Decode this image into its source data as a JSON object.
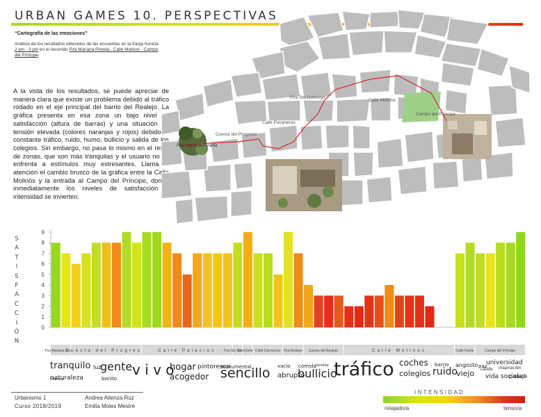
{
  "header": {
    "title": "URBAN GAMES 10. PERSPECTIVAS",
    "subtitle": "“Cartografía de las emociones”",
    "analysis_prefix": "Análisis de los resultados obtenidos de las encuentas en la franja horaria ",
    "analysis_time": "2 pm - 3 pm",
    "analysis_mid": " en el recorrido ",
    "analysis_route": "Pza Mariana Pineda - Calle Molinos - Campo del Príncipe",
    "analysis_end": "."
  },
  "body_text": "A la vista de los resultados, se puede apreciar de manera clara que existe un problema debido al tráfico rodado en el eje principal del barrio del Realejo. La gráfica presenta en esa zona un bajo nivel de satisfacción (altura de barras) y una situación de tensión elevada (colores naranjas y rojos) debido al constante tráfico, ruido, humo, bullicio y salida de los colegios. Sin embargo, no pasa lo mismo en el resto de zonas, que son más tranquilas y el usuario no se enfrenta a estímulos muy estresantes. Llama la atención el cambio brusco de la gráfica entre la Calle Molinos y la entrada al Campo del Príncipe, donde inmediatamente los niveles de satisfacción e intensidad se invierten.",
  "map": {
    "labels": [
      "Pza Sto Domingo",
      "Calle Molinos",
      "Campo del Príncipe",
      "Calle Pavaneras",
      "Cuesta del Progreso",
      "Pza Mariana Pineda"
    ],
    "colors": {
      "block": "#bdbdbd",
      "route": "#d8232a",
      "park": "#9fd08a"
    }
  },
  "chart_data": {
    "type": "bar",
    "ylabel": "SATISFACCIÓN",
    "ylim": [
      0,
      9
    ],
    "yticks": [
      0,
      1,
      2,
      3,
      4,
      5,
      6,
      7,
      8,
      9
    ],
    "values": [
      8,
      7,
      6,
      7,
      8,
      8,
      8,
      9,
      8,
      9,
      9,
      8,
      7,
      5,
      7,
      7,
      7,
      7,
      8,
      9,
      7,
      7,
      5,
      9,
      7,
      4,
      3,
      3,
      3,
      2,
      2,
      3,
      3,
      4,
      3,
      3,
      3,
      2,
      0,
      0,
      7,
      8,
      7,
      7,
      8,
      8,
      9
    ],
    "colors": [
      "#9ad81e",
      "#e8e41c",
      "#f3d01b",
      "#d6e21c",
      "#c2de1e",
      "#f2be19",
      "#f08a18",
      "#b4dc1e",
      "#d1e21e",
      "#a8da1e",
      "#a0d81e",
      "#f0b41a",
      "#f08a18",
      "#e8661a",
      "#f2a81a",
      "#f2c41b",
      "#f2c41b",
      "#f2c41b",
      "#c4de1e",
      "#f2ad19",
      "#c8e01e",
      "#b8dc1e",
      "#f2c41b",
      "#e4e41c",
      "#f08a18",
      "#f2a41a",
      "#e8401a",
      "#e4301a",
      "#e85a1a",
      "#e4301a",
      "#e02a14",
      "#e4341a",
      "#ea5018",
      "#f08a18",
      "#e8401a",
      "#e4341a",
      "#e4301a",
      "#e02a14",
      "#ffffff",
      "#ffffff",
      "#c8e01e",
      "#b4dc1e",
      "#c0de1e",
      "#eae41c",
      "#b8dc1e",
      "#a8da1e",
      "#8fd81e"
    ],
    "segments": [
      {
        "label": "Pza Mariana Pineda",
        "bars": 2
      },
      {
        "label": "Cuesta del Progreso",
        "bars": 7
      },
      {
        "label": "Calle Palacios",
        "bars": 9
      },
      {
        "label": "Pza Sto Domingo",
        "bars": 1
      },
      {
        "label": "Sto Domingo",
        "bars": 1
      },
      {
        "label": "Calle Carnicería",
        "bars": 3
      },
      {
        "label": "Pza Realejo",
        "bars": 2
      },
      {
        "label": "Cuesta del Realejo",
        "bars": 4
      },
      {
        "label": "Calle Molinos",
        "bars": 11
      },
      {
        "label": "Calle Huete",
        "bars": 2
      },
      {
        "label": "Campo del Príncipe",
        "bars": 5
      }
    ]
  },
  "words": [
    {
      "t": "tranquilo",
      "s": 13
    },
    {
      "t": "luz",
      "s": 8
    },
    {
      "t": "gente",
      "s": 16
    },
    {
      "t": "naturaleza",
      "s": 9
    },
    {
      "t": "bonito",
      "s": 7
    },
    {
      "t": "infancia",
      "s": 5
    },
    {
      "t": "v i v o",
      "s": 20
    },
    {
      "t": "hogar",
      "s": 13
    },
    {
      "t": "acogedor",
      "s": 12
    },
    {
      "t": "pintoresco",
      "s": 9
    },
    {
      "t": "monumental",
      "s": 7
    },
    {
      "t": "sencillo",
      "s": 19
    },
    {
      "t": "vacío",
      "s": 7
    },
    {
      "t": "abrupto",
      "s": 10
    },
    {
      "t": "comida",
      "s": 7
    },
    {
      "t": "familiar",
      "s": 5
    },
    {
      "t": "bullicio",
      "s": 16
    },
    {
      "t": "tráfico",
      "s": 27
    },
    {
      "t": "coches",
      "s": 12
    },
    {
      "t": "colegios",
      "s": 11
    },
    {
      "t": "ruido",
      "s": 14
    },
    {
      "t": "barrio",
      "s": 7
    },
    {
      "t": "angosto",
      "s": 8
    },
    {
      "t": "viejo",
      "s": 11
    },
    {
      "t": "cálido",
      "s": 6
    },
    {
      "t": "paz",
      "s": 7
    },
    {
      "t": "universidad",
      "s": 9
    },
    {
      "t": "inspiración",
      "s": 6
    },
    {
      "t": "vida social",
      "s": 9
    },
    {
      "t": "pasaje",
      "s": 8
    },
    {
      "t": "sol",
      "s": 8
    }
  ],
  "footer": {
    "course": "Urbanismo 1",
    "year": "Curso 2018/2019",
    "author1": "Andrea Atienza Ruz",
    "author2": "Emilia Moles Mestre"
  },
  "intensity": {
    "title": "INTENSIDAD",
    "left": "relajado/a",
    "right": "tenso/a"
  }
}
